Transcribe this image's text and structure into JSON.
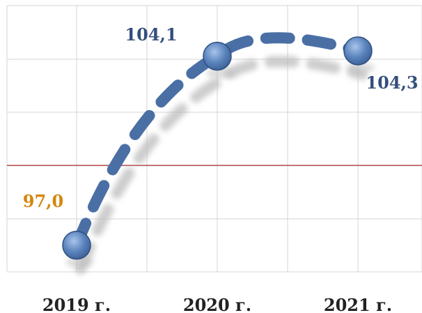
{
  "chart_data": {
    "type": "line",
    "categories": [
      "2019 г.",
      "2020 г.",
      "2021 г."
    ],
    "series": [
      {
        "values": [
          97.0,
          104.1,
          104.3
        ]
      }
    ],
    "data_labels": [
      "97,0",
      "104,1",
      "104,3"
    ],
    "reference_line": 100,
    "ylim": [
      96,
      106
    ],
    "grid": true,
    "colors": {
      "line": "#4a6fa5",
      "marker": "#5b84bd",
      "label_first": "#d4870d",
      "label_other": "#354f7c",
      "reference": "#b02020",
      "grid": "#d4d4d4",
      "category_text": "#222222"
    }
  }
}
